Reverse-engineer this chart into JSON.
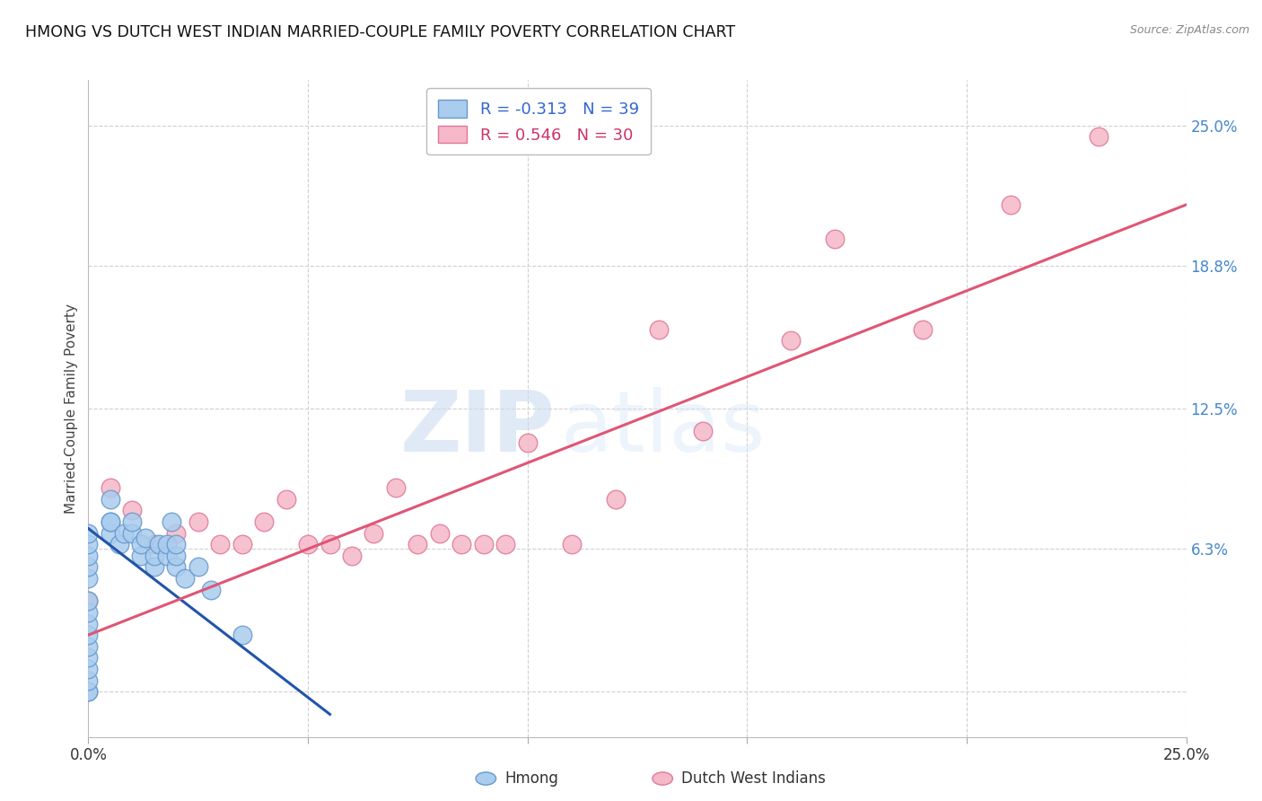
{
  "title": "HMONG VS DUTCH WEST INDIAN MARRIED-COUPLE FAMILY POVERTY CORRELATION CHART",
  "source": "Source: ZipAtlas.com",
  "ylabel_label": "Married-Couple Family Poverty",
  "xlim": [
    0.0,
    0.25
  ],
  "ylim": [
    -0.02,
    0.27
  ],
  "ytick_positions_right": [
    0.0,
    0.063,
    0.125,
    0.188,
    0.25
  ],
  "ytick_labels_right": [
    "",
    "6.3%",
    "12.5%",
    "18.8%",
    "25.0%"
  ],
  "hmong_color": "#aaccee",
  "dutch_color": "#f5b8c8",
  "hmong_edge": "#6699cc",
  "dutch_edge": "#e07898",
  "r_hmong": -0.313,
  "n_hmong": 39,
  "r_dutch": 0.546,
  "n_dutch": 30,
  "watermark_zip": "ZIP",
  "watermark_atlas": "atlas",
  "legend_label_hmong": "Hmong",
  "legend_label_dutch": "Dutch West Indians",
  "hmong_x": [
    0.0,
    0.0,
    0.0,
    0.0,
    0.0,
    0.0,
    0.0,
    0.0,
    0.0,
    0.0,
    0.0,
    0.0,
    0.0,
    0.0,
    0.0,
    0.005,
    0.005,
    0.005,
    0.005,
    0.007,
    0.008,
    0.01,
    0.01,
    0.012,
    0.012,
    0.013,
    0.015,
    0.015,
    0.016,
    0.018,
    0.018,
    0.019,
    0.02,
    0.02,
    0.02,
    0.022,
    0.025,
    0.028,
    0.035
  ],
  "hmong_y": [
    0.0,
    0.0,
    0.005,
    0.01,
    0.015,
    0.02,
    0.025,
    0.03,
    0.035,
    0.04,
    0.05,
    0.055,
    0.06,
    0.065,
    0.07,
    0.07,
    0.075,
    0.075,
    0.085,
    0.065,
    0.07,
    0.07,
    0.075,
    0.06,
    0.065,
    0.068,
    0.055,
    0.06,
    0.065,
    0.06,
    0.065,
    0.075,
    0.055,
    0.06,
    0.065,
    0.05,
    0.055,
    0.045,
    0.025
  ],
  "dutch_x": [
    0.0,
    0.005,
    0.01,
    0.015,
    0.02,
    0.025,
    0.03,
    0.035,
    0.04,
    0.045,
    0.05,
    0.055,
    0.06,
    0.065,
    0.07,
    0.075,
    0.08,
    0.085,
    0.09,
    0.095,
    0.1,
    0.11,
    0.12,
    0.13,
    0.14,
    0.16,
    0.17,
    0.19,
    0.21,
    0.23
  ],
  "dutch_y": [
    0.04,
    0.09,
    0.08,
    0.065,
    0.07,
    0.075,
    0.065,
    0.065,
    0.075,
    0.085,
    0.065,
    0.065,
    0.06,
    0.07,
    0.09,
    0.065,
    0.07,
    0.065,
    0.065,
    0.065,
    0.11,
    0.065,
    0.085,
    0.16,
    0.115,
    0.155,
    0.2,
    0.16,
    0.215,
    0.245
  ],
  "hmong_line_x": [
    0.0,
    0.055
  ],
  "hmong_line_y": [
    0.072,
    -0.01
  ],
  "dutch_line_x": [
    0.0,
    0.25
  ],
  "dutch_line_y": [
    0.025,
    0.215
  ],
  "grid_color": "#d0d0d0",
  "background_color": "#ffffff"
}
